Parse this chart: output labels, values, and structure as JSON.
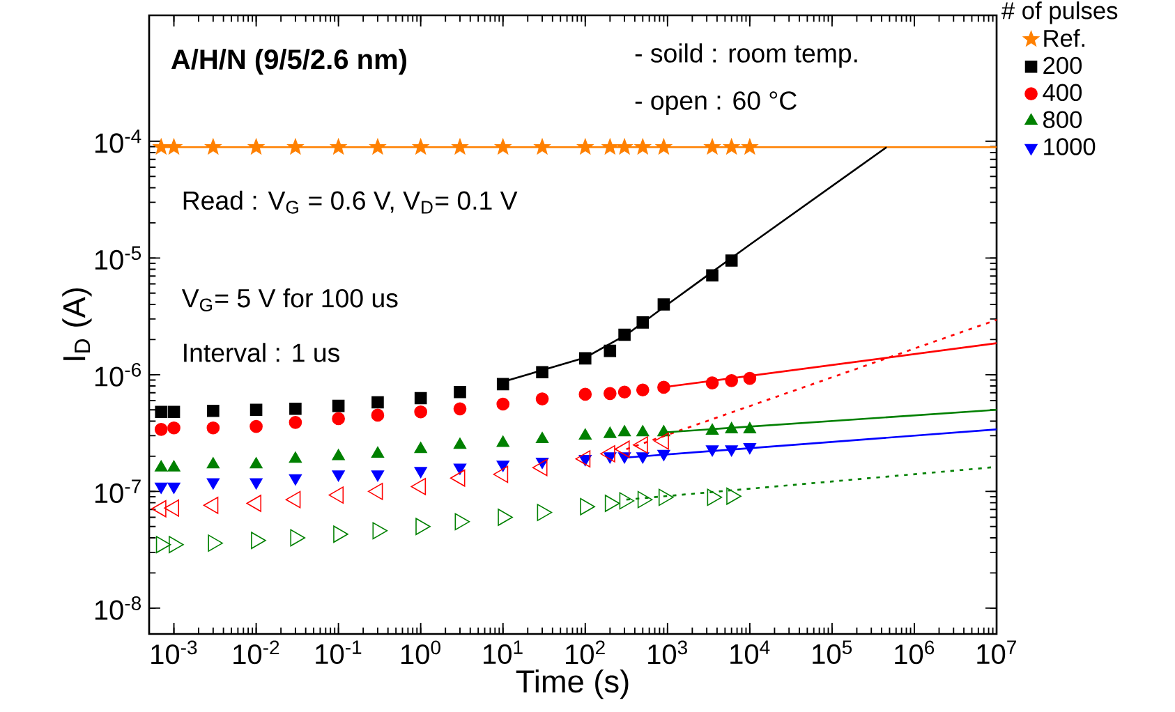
{
  "chart_data": {
    "type": "scatter",
    "xlabel": "Time (s)",
    "ylabel": "I$_{D}$ (A)",
    "legend_title": "# of pulses",
    "legend": "right",
    "log": "xy",
    "xlim": [
      0.0005,
      10000000
    ],
    "ylim": [
      6e-09,
      0.0012
    ],
    "xticks": [
      {
        "value": 0.001,
        "label": "10$^{-3}$"
      },
      {
        "value": 0.01,
        "label": "10$^{-2}$"
      },
      {
        "value": 0.1,
        "label": "10$^{-1}$"
      },
      {
        "value": 1,
        "label": "10$^{0}$"
      },
      {
        "value": 10,
        "label": "10$^{1}$"
      },
      {
        "value": 100,
        "label": "10$^{2}$"
      },
      {
        "value": 1000,
        "label": "10$^{3}$"
      },
      {
        "value": 10000,
        "label": "10$^{4}$"
      },
      {
        "value": 100000,
        "label": "10$^{5}$"
      },
      {
        "value": 1000000,
        "label": "10$^{6}$"
      },
      {
        "value": 10000000,
        "label": "10$^{7}$"
      }
    ],
    "yticks": [
      {
        "value": 1e-08,
        "label": "10$^{-8}$"
      },
      {
        "value": 1e-07,
        "label": "10$^{-7}$"
      },
      {
        "value": 1e-06,
        "label": "10$^{-6}$"
      },
      {
        "value": 1e-05,
        "label": "10$^{-5}$"
      },
      {
        "value": 0.0001,
        "label": "10$^{-4}$"
      }
    ],
    "x": [
      0.0007,
      0.001,
      0.003,
      0.01,
      0.03,
      0.1,
      0.3,
      1,
      3,
      10,
      30,
      100,
      200,
      300,
      500,
      900,
      3500,
      6000,
      10000
    ],
    "annotations": [
      "**A/H/N (9/5/2.6 nm)**",
      "- soild : room temp.",
      "- open : 60 °C",
      "Read : V$_{G}$ = 0.6 V, V$_{D}$= 0.1 V",
      "V$_{G}$= 5 V for 100 us",
      "Interval : 1 us"
    ],
    "series": [
      {
        "name": "Ref.",
        "color": "#ff8000",
        "marker": "star",
        "values": [
          8.9e-05,
          8.9e-05,
          8.9e-05,
          8.9e-05,
          8.9e-05,
          8.9e-05,
          8.9e-05,
          8.9e-05,
          8.9e-05,
          8.9e-05,
          8.9e-05,
          8.9e-05,
          8.9e-05,
          8.9e-05,
          8.9e-05,
          8.9e-05,
          8.9e-05,
          8.9e-05,
          8.9e-05
        ]
      },
      {
        "name": "200",
        "color": "#000000",
        "marker": "square",
        "values": [
          4.8e-07,
          4.8e-07,
          4.9e-07,
          5e-07,
          5.1e-07,
          5.4e-07,
          5.8e-07,
          6.3e-07,
          7.1e-07,
          8.3e-07,
          1.05e-06,
          1.38e-06,
          1.6e-06,
          2.2e-06,
          2.8e-06,
          4e-06,
          7.1e-06,
          9.5e-06,
          null
        ]
      },
      {
        "name": "400",
        "color": "#ff0000",
        "marker": "circle",
        "values": [
          3.4e-07,
          3.5e-07,
          3.5e-07,
          3.6e-07,
          3.9e-07,
          4.2e-07,
          4.5e-07,
          4.8e-07,
          5.1e-07,
          5.6e-07,
          6.2e-07,
          6.8e-07,
          6.9e-07,
          7.1e-07,
          7.4e-07,
          7.8e-07,
          8.5e-07,
          8.9e-07,
          9.3e-07
        ]
      },
      {
        "name": "800",
        "color": "#008000",
        "marker": "triangle",
        "values": [
          1.6e-07,
          1.6e-07,
          1.7e-07,
          1.7e-07,
          1.9e-07,
          2e-07,
          2.1e-07,
          2.3e-07,
          2.5e-07,
          2.6e-07,
          2.8e-07,
          3e-07,
          3.1e-07,
          3.2e-07,
          3.2e-07,
          3.2e-07,
          3.3e-07,
          3.4e-07,
          3.4e-07
        ]
      },
      {
        "name": "1000",
        "color": "#0000ff",
        "marker": "triangle-down",
        "values": [
          1.1e-07,
          1.1e-07,
          1.2e-07,
          1.2e-07,
          1.3e-07,
          1.4e-07,
          1.4e-07,
          1.5e-07,
          1.6e-07,
          1.7e-07,
          1.8e-07,
          1.9e-07,
          2e-07,
          2e-07,
          2e-07,
          2.1e-07,
          2.3e-07,
          2.3e-07,
          2.4e-07
        ]
      },
      {
        "color": "#ff0000",
        "marker": "triangle-left",
        "values": [
          7.1e-08,
          7.2e-08,
          7.6e-08,
          7.9e-08,
          8.5e-08,
          9.3e-08,
          1e-07,
          1.1e-07,
          1.3e-07,
          1.4e-07,
          1.6e-07,
          1.9e-07,
          2.1e-07,
          2.3e-07,
          2.5e-07,
          2.7e-07,
          null,
          null,
          null
        ]
      },
      {
        "color": "#008000",
        "marker": "triangle-right",
        "values": [
          3.5e-08,
          3.5e-08,
          3.6e-08,
          3.8e-08,
          4e-08,
          4.3e-08,
          4.6e-08,
          5e-08,
          5.5e-08,
          6e-08,
          6.6e-08,
          7.4e-08,
          7.9e-08,
          8.3e-08,
          8.5e-08,
          8.9e-08,
          8.9e-08,
          9.1e-08,
          null
        ]
      },
      {
        "type": "line",
        "color": "#ff8000",
        "line_style": "solid",
        "x": [
          0.0007,
          10000000
        ],
        "values": [
          8.9e-05,
          8.9e-05
        ]
      },
      {
        "type": "line",
        "color": "#000000",
        "line_style": "solid",
        "x": [
          10,
          100,
          316,
          1000,
          10000,
          460000
        ],
        "values": [
          8.7e-07,
          1.4e-06,
          2.2e-06,
          4e-06,
          1.3e-05,
          8.9e-05
        ]
      },
      {
        "type": "line",
        "color": "#ff0000",
        "line_style": "solid",
        "x": [
          1000,
          10000000
        ],
        "values": [
          7.9e-07,
          1.86e-06
        ]
      },
      {
        "type": "line",
        "color": "#ff0000",
        "line_style": "dotted",
        "x": [
          316,
          10000000
        ],
        "values": [
          2.3e-07,
          2.95e-06
        ]
      },
      {
        "type": "line",
        "color": "#008000",
        "line_style": "solid",
        "x": [
          900,
          10000000
        ],
        "values": [
          3.2e-07,
          5e-07
        ]
      },
      {
        "type": "line",
        "color": "#0000ff",
        "line_style": "solid",
        "x": [
          316,
          10000000
        ],
        "values": [
          1.95e-07,
          3.4e-07
        ]
      },
      {
        "type": "line",
        "color": "#008000",
        "line_style": "dotted",
        "x": [
          316,
          10000000
        ],
        "values": [
          8.5e-08,
          1.62e-07
        ]
      }
    ]
  }
}
